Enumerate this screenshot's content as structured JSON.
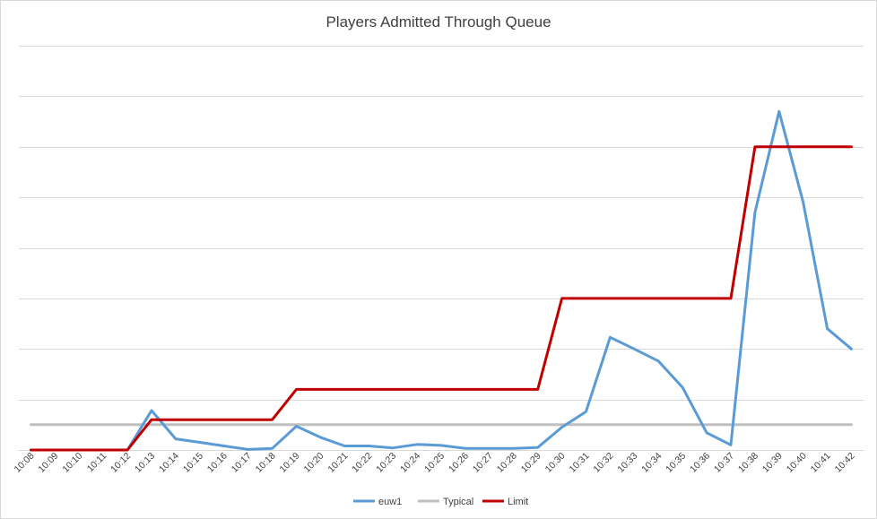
{
  "chart_data": {
    "type": "line",
    "title": "Players Admitted Through Queue",
    "xlabel": "",
    "ylabel": "",
    "y_tick_labels_shown": false,
    "ylim": [
      0,
      8
    ],
    "grid": "horizontal",
    "legend_position": "bottom",
    "categories": [
      "10:08",
      "10:09",
      "10:10",
      "10:11",
      "10:12",
      "10:13",
      "10:14",
      "10:15",
      "10:16",
      "10:17",
      "10:18",
      "10:19",
      "10:20",
      "10:21",
      "10:22",
      "10:23",
      "10:24",
      "10:25",
      "10:26",
      "10:27",
      "10:28",
      "10:29",
      "10:30",
      "10:31",
      "10:32",
      "10:33",
      "10:34",
      "10:35",
      "10:36",
      "10:37",
      "10:38",
      "10:39",
      "10:40",
      "10:41",
      "10:42"
    ],
    "series": [
      {
        "name": "euw1",
        "color": "#5b9bd5",
        "values": [
          0,
          0,
          0,
          0,
          0,
          0.78,
          0.22,
          0.15,
          0.08,
          0.01,
          0.03,
          0.47,
          0.25,
          0.08,
          0.08,
          0.04,
          0.11,
          0.09,
          0.03,
          0.03,
          0.03,
          0.05,
          0.45,
          0.76,
          2.23,
          2.0,
          1.76,
          1.24,
          0.34,
          0.1,
          4.7,
          6.7,
          4.9,
          2.4,
          2.0
        ]
      },
      {
        "name": "Typical",
        "color": "#bfbfbf",
        "values": [
          0.5,
          0.5,
          0.5,
          0.5,
          0.5,
          0.5,
          0.5,
          0.5,
          0.5,
          0.5,
          0.5,
          0.5,
          0.5,
          0.5,
          0.5,
          0.5,
          0.5,
          0.5,
          0.5,
          0.5,
          0.5,
          0.5,
          0.5,
          0.5,
          0.5,
          0.5,
          0.5,
          0.5,
          0.5,
          0.5,
          0.5,
          0.5,
          0.5,
          0.5,
          0.5
        ]
      },
      {
        "name": "Limit",
        "color": "#c00000",
        "values": [
          0,
          0,
          0,
          0,
          0,
          0.6,
          0.6,
          0.6,
          0.6,
          0.6,
          0.6,
          1.2,
          1.2,
          1.2,
          1.2,
          1.2,
          1.2,
          1.2,
          1.2,
          1.2,
          1.2,
          1.2,
          3.0,
          3.0,
          3.0,
          3.0,
          3.0,
          3.0,
          3.0,
          3.0,
          6.0,
          6.0,
          6.0,
          6.0,
          6.0
        ]
      }
    ]
  }
}
